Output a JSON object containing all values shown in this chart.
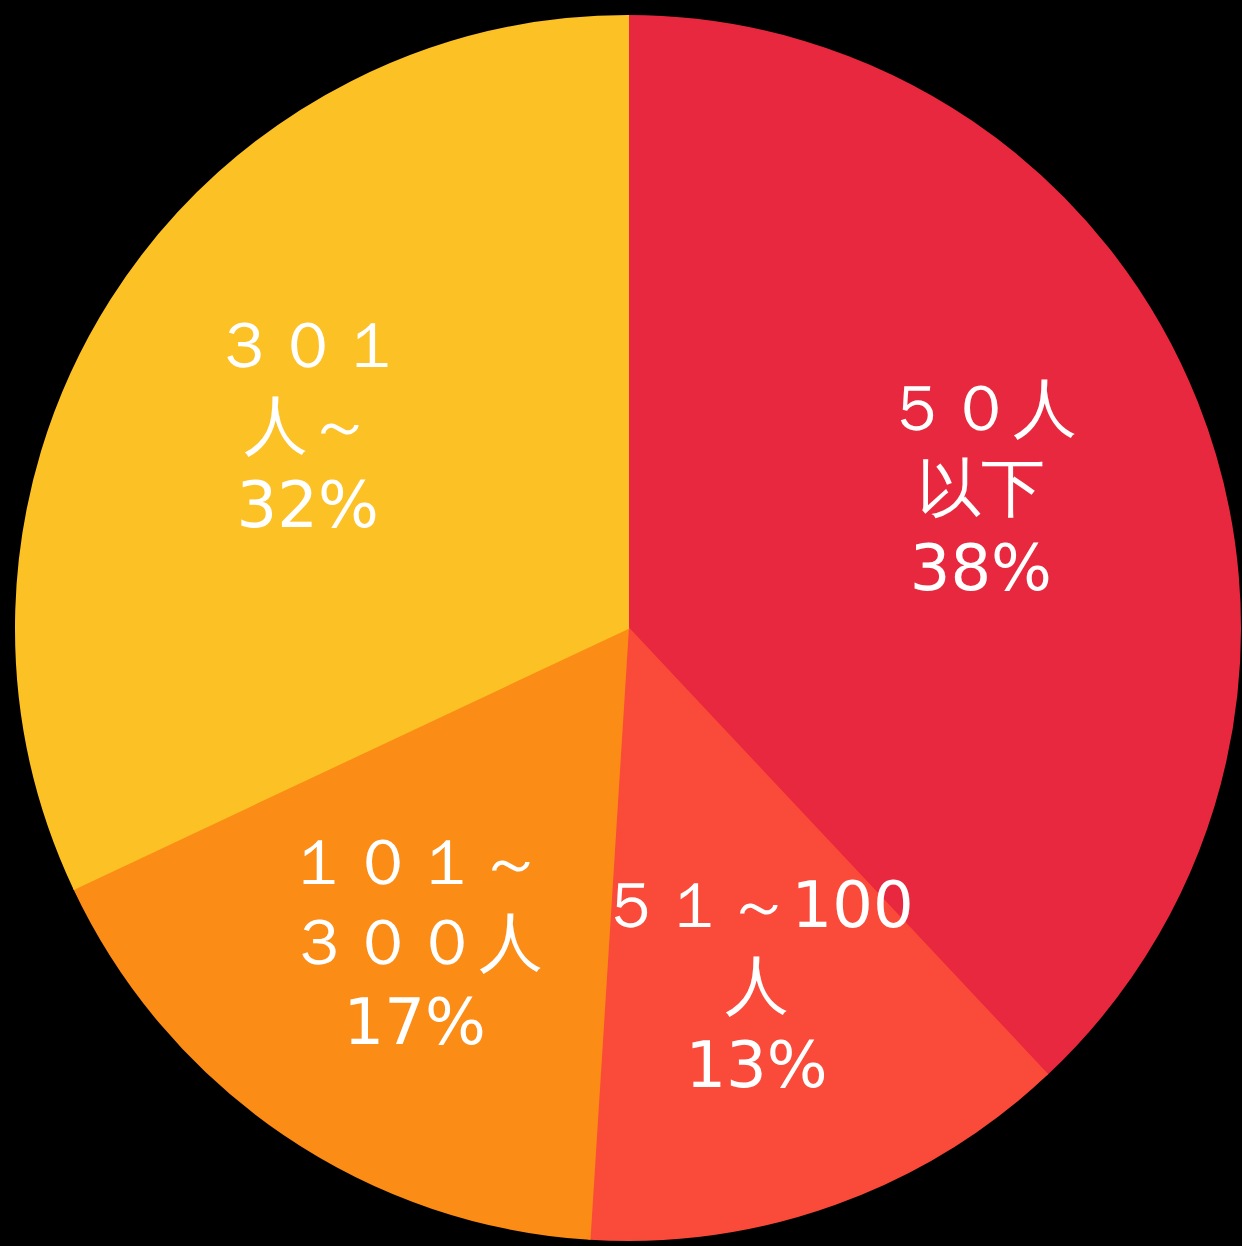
{
  "chart_data": {
    "type": "pie",
    "categories": [
      "５０人以下",
      "５１～100人",
      "１０１～３００人",
      "３０１人～"
    ],
    "values": [
      38,
      13,
      17,
      32
    ],
    "value_labels": [
      "38%",
      "13%",
      "17%",
      "32%"
    ],
    "colors": [
      "#e8283e",
      "#fa4a3a",
      "#fb8c16",
      "#fcc124"
    ]
  }
}
